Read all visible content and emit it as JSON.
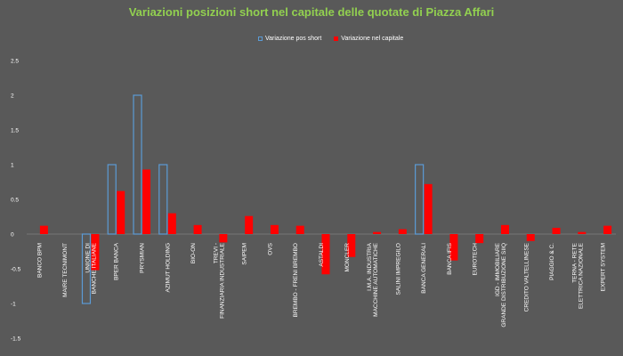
{
  "chart_data": {
    "type": "bar",
    "title": "Variazioni posizioni short nel capitale delle quotate di Piazza Affari",
    "legend_position": "top-center",
    "grid": false,
    "ylim": [
      -1.5,
      2.5
    ],
    "yticks": [
      "2.5",
      "2",
      "1.5",
      "1",
      "0.5",
      "0",
      "-0.5",
      "-1",
      "-1.5"
    ],
    "categories": [
      "BANCO BPM",
      "MAIRE TECNIMONT",
      "UNIONE DI BANCHE ITALIANE",
      "BPER BANCA",
      "PRYSMIAN",
      "AZIMUT HOLDING",
      "BIO-ON",
      "TREVI - FINANZIARIA INDUSTRIALE",
      "SAIPEM",
      "OVS",
      "BREMBO - FRENI BREMBO",
      "ASTALDI",
      "MONCLER",
      "I.M.A. INDUSTRIA MACCHINE AUTOMATICHE",
      "SALINI IMPREGILO",
      "BANCA GENERALI",
      "BANCA IFIS",
      "EUROTECH",
      "IGD - IMMOBILIARE GRANDE DISTRIBUZIONE SIIQ",
      "CREDITO VALTELLINESE",
      "PIAGGIO & C.",
      "TERNA - RETE ELETTRICA NAZIONALE",
      "EXPERT SYSTEM"
    ],
    "series": [
      {
        "name": "Variazione pos short",
        "style": "outline",
        "color": "#5b9bd5",
        "values": [
          0,
          0,
          -1,
          1,
          2,
          1,
          0,
          0,
          0,
          0,
          0,
          0,
          0,
          0,
          0,
          1,
          0,
          0,
          0,
          0,
          0,
          0,
          0
        ]
      },
      {
        "name": "Variazione nel capitale",
        "style": "fill",
        "color": "#ff0000",
        "values": [
          0.12,
          0,
          -0.52,
          0.62,
          0.93,
          0.3,
          0.13,
          -0.12,
          0.26,
          0.13,
          0.12,
          -0.58,
          -0.33,
          0.03,
          0.07,
          0.72,
          -0.38,
          -0.13,
          0.13,
          -0.1,
          0.09,
          0.03,
          0.12
        ]
      }
    ]
  },
  "colors": {
    "background": "#595959",
    "title": "#92d050",
    "text": "#ffffff"
  }
}
